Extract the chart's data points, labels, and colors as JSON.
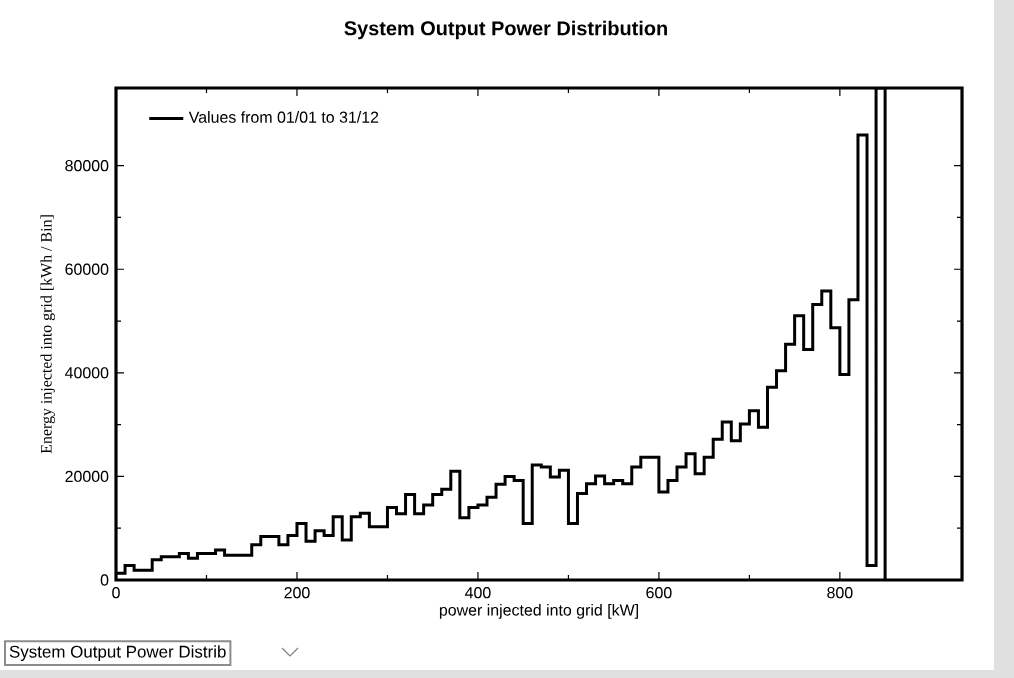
{
  "chart_data": {
    "type": "histogram",
    "title": "System Output Power Distribution",
    "xlabel": "power injected into grid [kW]",
    "ylabel": "Energy injected into grid [kWh / Bin]",
    "bins": [
      0,
      10,
      20,
      30,
      40,
      50,
      60,
      70,
      80,
      90,
      100,
      110,
      120,
      130,
      140,
      150,
      160,
      170,
      180,
      190,
      200,
      210,
      220,
      230,
      240,
      250,
      260,
      270,
      280,
      290,
      300,
      310,
      320,
      330,
      340,
      350,
      360,
      370,
      380,
      390,
      400,
      410,
      420,
      430,
      440,
      450,
      460,
      470,
      480,
      490,
      500,
      510,
      520,
      530,
      540,
      550,
      560,
      570,
      580,
      590,
      600,
      610,
      620,
      630,
      640,
      650,
      660,
      670,
      680,
      690,
      700,
      710,
      720,
      730,
      740,
      750,
      760,
      770,
      780,
      790,
      800,
      810,
      820,
      830,
      840,
      850
    ],
    "series": [
      {
        "name": "Values from 01/01 to 31/12",
        "color": "#000000",
        "values": [
          1300,
          2800,
          1900,
          1900,
          3900,
          4500,
          4500,
          5100,
          4200,
          5100,
          5100,
          5800,
          4800,
          4800,
          4800,
          6800,
          8400,
          8400,
          6800,
          8600,
          10900,
          7500,
          9500,
          8600,
          12200,
          7700,
          12200,
          12900,
          10300,
          10300,
          14000,
          12800,
          16500,
          12800,
          14500,
          16500,
          17500,
          21000,
          12000,
          14000,
          14500,
          16000,
          18500,
          20000,
          19200,
          10900,
          22200,
          21800,
          19900,
          21200,
          10900,
          16700,
          18600,
          20100,
          18600,
          19200,
          18600,
          21800,
          23700,
          23700,
          17000,
          19200,
          21800,
          24400,
          20500,
          23700,
          27200,
          30500,
          26900,
          30100,
          32700,
          29500,
          37200,
          40400,
          45500,
          51000,
          44500,
          53200,
          55800,
          48700,
          39700,
          54100,
          85900,
          2800,
          95000
        ]
      }
    ],
    "xlim": [
      0,
      935
    ],
    "ylim": [
      0,
      95000
    ],
    "xticks": [
      0,
      200,
      400,
      600,
      800
    ],
    "yticks": [
      0,
      20000,
      40000,
      60000,
      80000
    ],
    "legend": "top left",
    "annotations": [
      "System Output Power Distrib"
    ]
  }
}
